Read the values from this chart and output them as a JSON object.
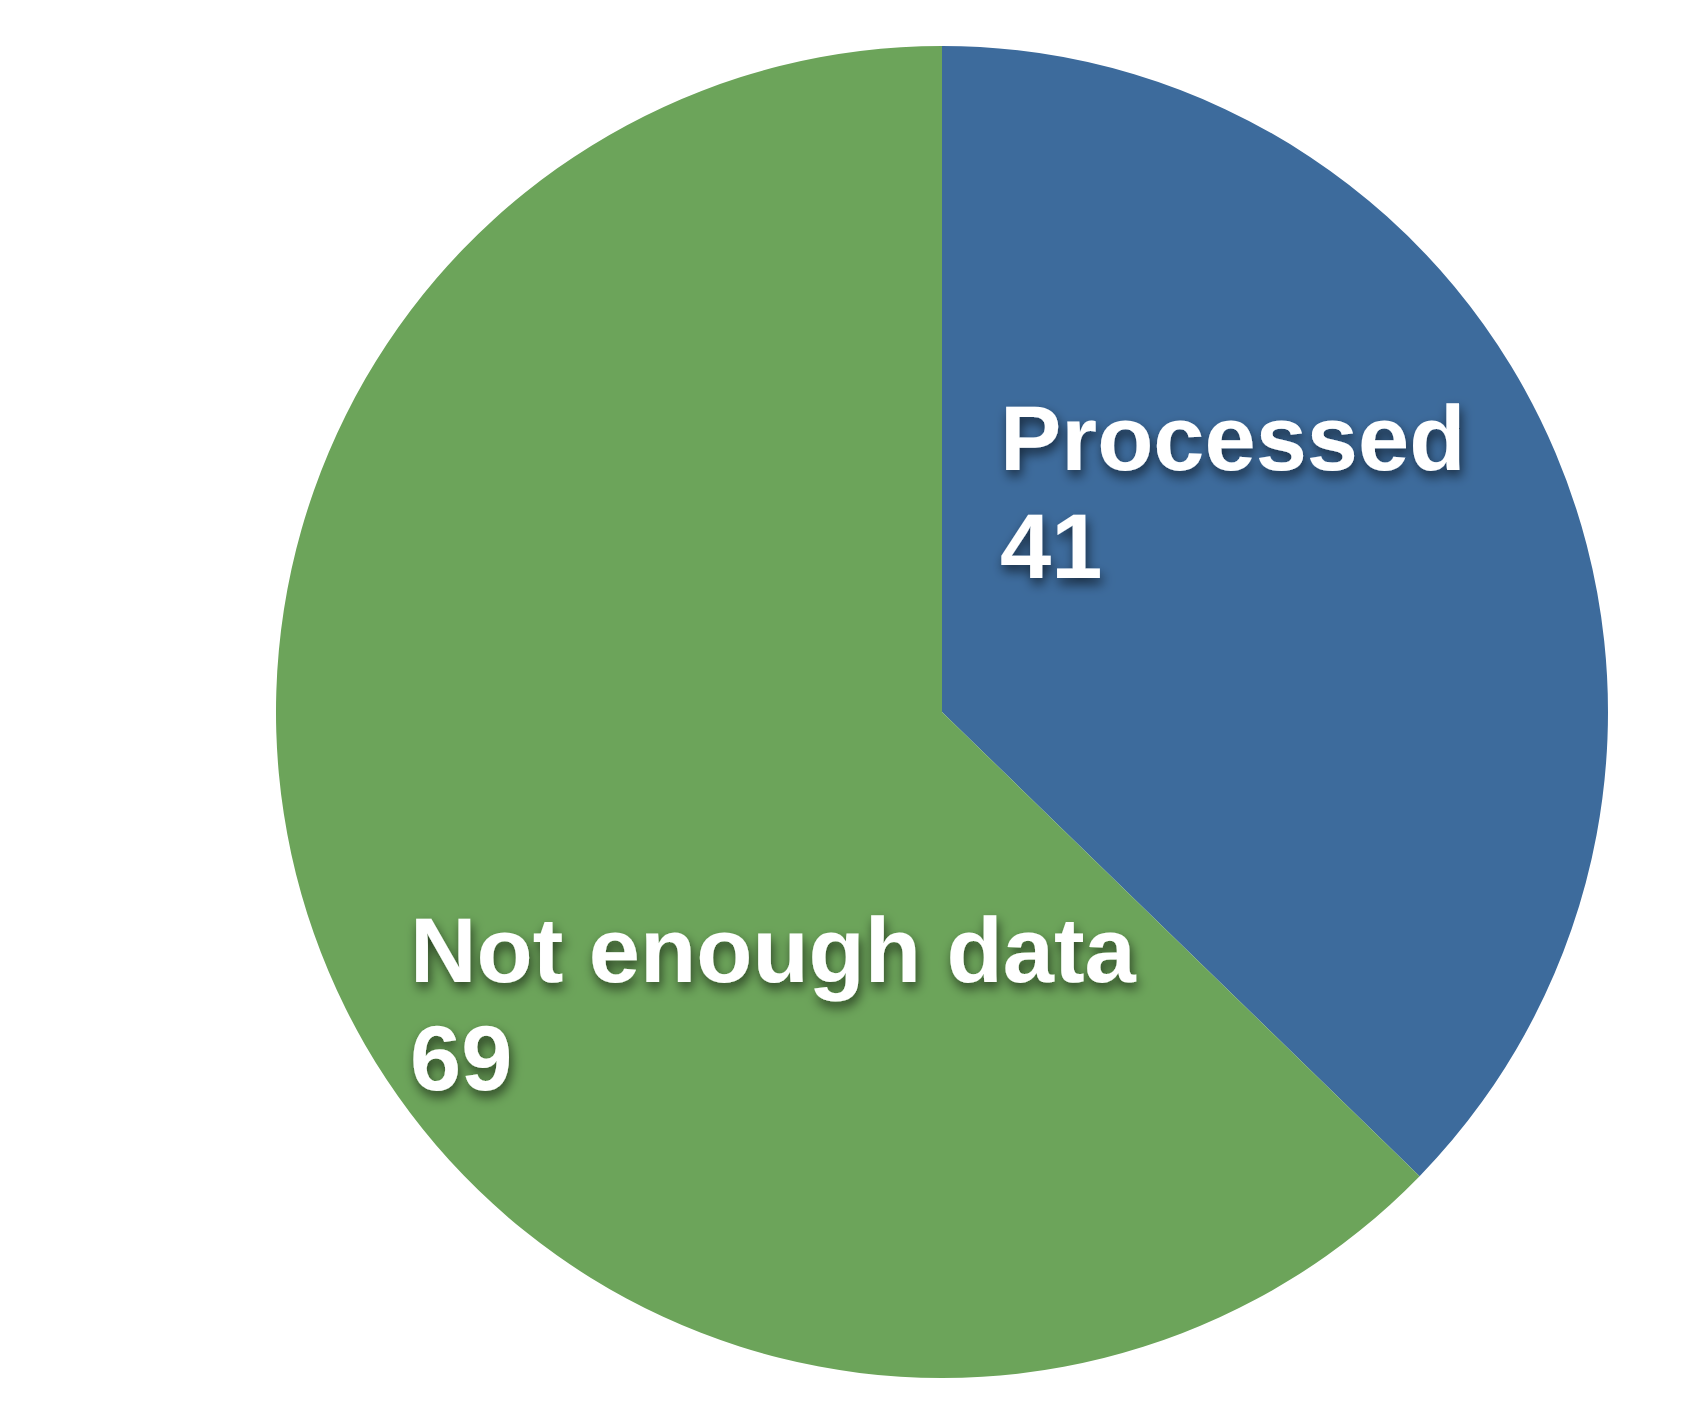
{
  "chart_data": {
    "type": "pie",
    "categories": [
      "Processed",
      "Not enough data"
    ],
    "values": [
      41,
      69
    ],
    "colors": [
      "#3d6b9c",
      "#6ca45a"
    ],
    "data_labels": true,
    "legend": false
  }
}
